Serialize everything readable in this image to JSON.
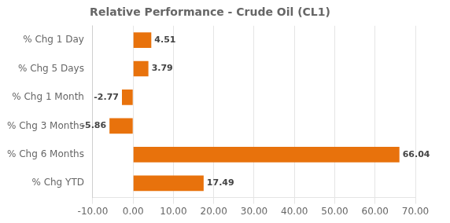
{
  "chart_data": {
    "type": "bar",
    "orientation": "horizontal",
    "title": "Relative Performance - Crude Oil (CL1)",
    "categories": [
      "% Chg 1 Day",
      "% Chg 5 Days",
      "% Chg 1 Month",
      "% Chg 3 Months",
      "% Chg 6 Months",
      "% Chg YTD"
    ],
    "values": [
      4.51,
      3.79,
      -2.77,
      -5.86,
      66.04,
      17.49
    ],
    "color": "#E8720C",
    "xlim": [
      -10,
      70
    ],
    "xticks": [
      {
        "value": -10,
        "label": "-10.00"
      },
      {
        "value": 0,
        "label": "0.00"
      },
      {
        "value": 10,
        "label": "10.00"
      },
      {
        "value": 20,
        "label": "20.00"
      },
      {
        "value": 30,
        "label": "30.00"
      },
      {
        "value": 40,
        "label": "40.00"
      },
      {
        "value": 50,
        "label": "50.00"
      },
      {
        "value": 60,
        "label": "60.00"
      },
      {
        "value": 70,
        "label": "70.00"
      }
    ],
    "grid": true,
    "data_labels": true
  }
}
